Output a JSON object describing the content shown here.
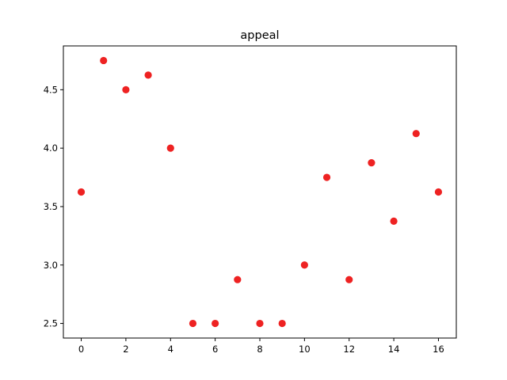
{
  "chart_data": {
    "type": "scatter",
    "title": "appeal",
    "xlabel": "",
    "ylabel": "",
    "xlim": [
      -0.8,
      16.8
    ],
    "ylim": [
      2.375,
      4.875
    ],
    "xticks": [
      0,
      2,
      4,
      6,
      8,
      10,
      12,
      14,
      16
    ],
    "xtick_labels": [
      "0",
      "2",
      "4",
      "6",
      "8",
      "10",
      "12",
      "14",
      "16"
    ],
    "yticks": [
      2.5,
      3.0,
      3.5,
      4.0,
      4.5
    ],
    "ytick_labels": [
      "2.5",
      "3.0",
      "3.5",
      "4.0",
      "4.5"
    ],
    "grid": false,
    "marker_color": "#ee2222",
    "series": [
      {
        "x": [
          0,
          1,
          2,
          3,
          4,
          5,
          6,
          7,
          8,
          9,
          10,
          11,
          12,
          13,
          14,
          15,
          16
        ],
        "y": [
          3.625,
          4.75,
          4.5,
          4.625,
          4.0,
          2.5,
          2.5,
          2.875,
          2.5,
          2.5,
          3.0,
          3.75,
          2.875,
          3.875,
          3.375,
          4.125,
          3.625
        ]
      }
    ]
  }
}
